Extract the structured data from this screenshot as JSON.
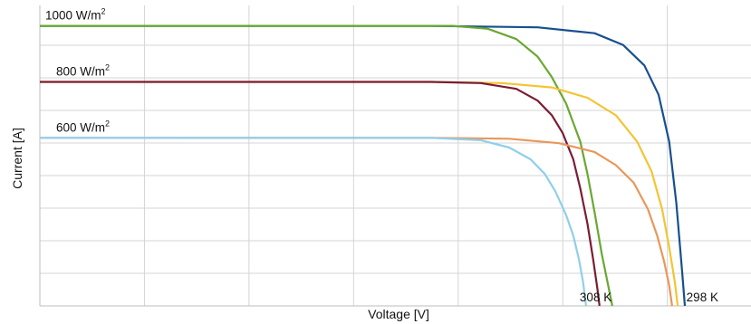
{
  "chart_data": {
    "type": "line",
    "xlabel": "Voltage [V]",
    "ylabel": "Current [A]",
    "xlim": [
      0,
      1
    ],
    "ylim": [
      0,
      1
    ],
    "x_gridlines": 6,
    "y_gridlines": 8,
    "grid": true,
    "irradiance_labels": [
      {
        "text": "1000 W/m",
        "sup": "2",
        "level": 0.955
      },
      {
        "text": "800 W/m",
        "sup": "2",
        "level": 0.764
      },
      {
        "text": "600 W/m",
        "sup": "2",
        "level": 0.573
      }
    ],
    "temperature_labels": [
      {
        "text": "308 K",
        "x": 0.805
      },
      {
        "text": "298 K",
        "x": 0.955
      }
    ],
    "series": [
      {
        "color": "#17508f",
        "points": [
          [
            0,
            0.955
          ],
          [
            0.55,
            0.955
          ],
          [
            0.7,
            0.95
          ],
          [
            0.78,
            0.93
          ],
          [
            0.82,
            0.89
          ],
          [
            0.85,
            0.82
          ],
          [
            0.87,
            0.72
          ],
          [
            0.885,
            0.56
          ],
          [
            0.895,
            0.35
          ],
          [
            0.903,
            0.12
          ],
          [
            0.907,
            0.0
          ]
        ]
      },
      {
        "color": "#6aa832",
        "points": [
          [
            0,
            0.955
          ],
          [
            0.58,
            0.955
          ],
          [
            0.63,
            0.945
          ],
          [
            0.67,
            0.91
          ],
          [
            0.7,
            0.85
          ],
          [
            0.72,
            0.78
          ],
          [
            0.74,
            0.69
          ],
          [
            0.76,
            0.56
          ],
          [
            0.77,
            0.45
          ],
          [
            0.78,
            0.32
          ],
          [
            0.79,
            0.18
          ],
          [
            0.8,
            0.06
          ],
          [
            0.805,
            0.0
          ]
        ]
      },
      {
        "color": "#f2c535",
        "points": [
          [
            0,
            0.764
          ],
          [
            0.55,
            0.764
          ],
          [
            0.65,
            0.76
          ],
          [
            0.72,
            0.745
          ],
          [
            0.77,
            0.71
          ],
          [
            0.81,
            0.65
          ],
          [
            0.84,
            0.56
          ],
          [
            0.86,
            0.46
          ],
          [
            0.875,
            0.33
          ],
          [
            0.885,
            0.2
          ],
          [
            0.893,
            0.08
          ],
          [
            0.897,
            0.0
          ]
        ]
      },
      {
        "color": "#7a1d33",
        "points": [
          [
            0,
            0.764
          ],
          [
            0.55,
            0.764
          ],
          [
            0.62,
            0.76
          ],
          [
            0.67,
            0.74
          ],
          [
            0.7,
            0.7
          ],
          [
            0.72,
            0.65
          ],
          [
            0.735,
            0.59
          ],
          [
            0.75,
            0.5
          ],
          [
            0.76,
            0.4
          ],
          [
            0.77,
            0.28
          ],
          [
            0.778,
            0.16
          ],
          [
            0.784,
            0.06
          ],
          [
            0.787,
            0.0
          ]
        ]
      },
      {
        "color": "#e8975a",
        "points": [
          [
            0,
            0.573
          ],
          [
            0.55,
            0.573
          ],
          [
            0.66,
            0.57
          ],
          [
            0.73,
            0.555
          ],
          [
            0.78,
            0.525
          ],
          [
            0.81,
            0.48
          ],
          [
            0.835,
            0.42
          ],
          [
            0.855,
            0.33
          ],
          [
            0.868,
            0.24
          ],
          [
            0.878,
            0.15
          ],
          [
            0.885,
            0.07
          ],
          [
            0.889,
            0.0
          ]
        ]
      },
      {
        "color": "#d8d8d8",
        "points": [
          [
            0,
            0.573
          ],
          [
            0.2,
            0.573
          ]
        ]
      },
      {
        "color": "#8fcfeb",
        "points": [
          [
            0,
            0.573
          ],
          [
            0.55,
            0.573
          ],
          [
            0.62,
            0.565
          ],
          [
            0.66,
            0.54
          ],
          [
            0.69,
            0.5
          ],
          [
            0.71,
            0.45
          ],
          [
            0.725,
            0.39
          ],
          [
            0.74,
            0.31
          ],
          [
            0.75,
            0.24
          ],
          [
            0.758,
            0.16
          ],
          [
            0.764,
            0.08
          ],
          [
            0.768,
            0.0
          ]
        ]
      }
    ]
  }
}
